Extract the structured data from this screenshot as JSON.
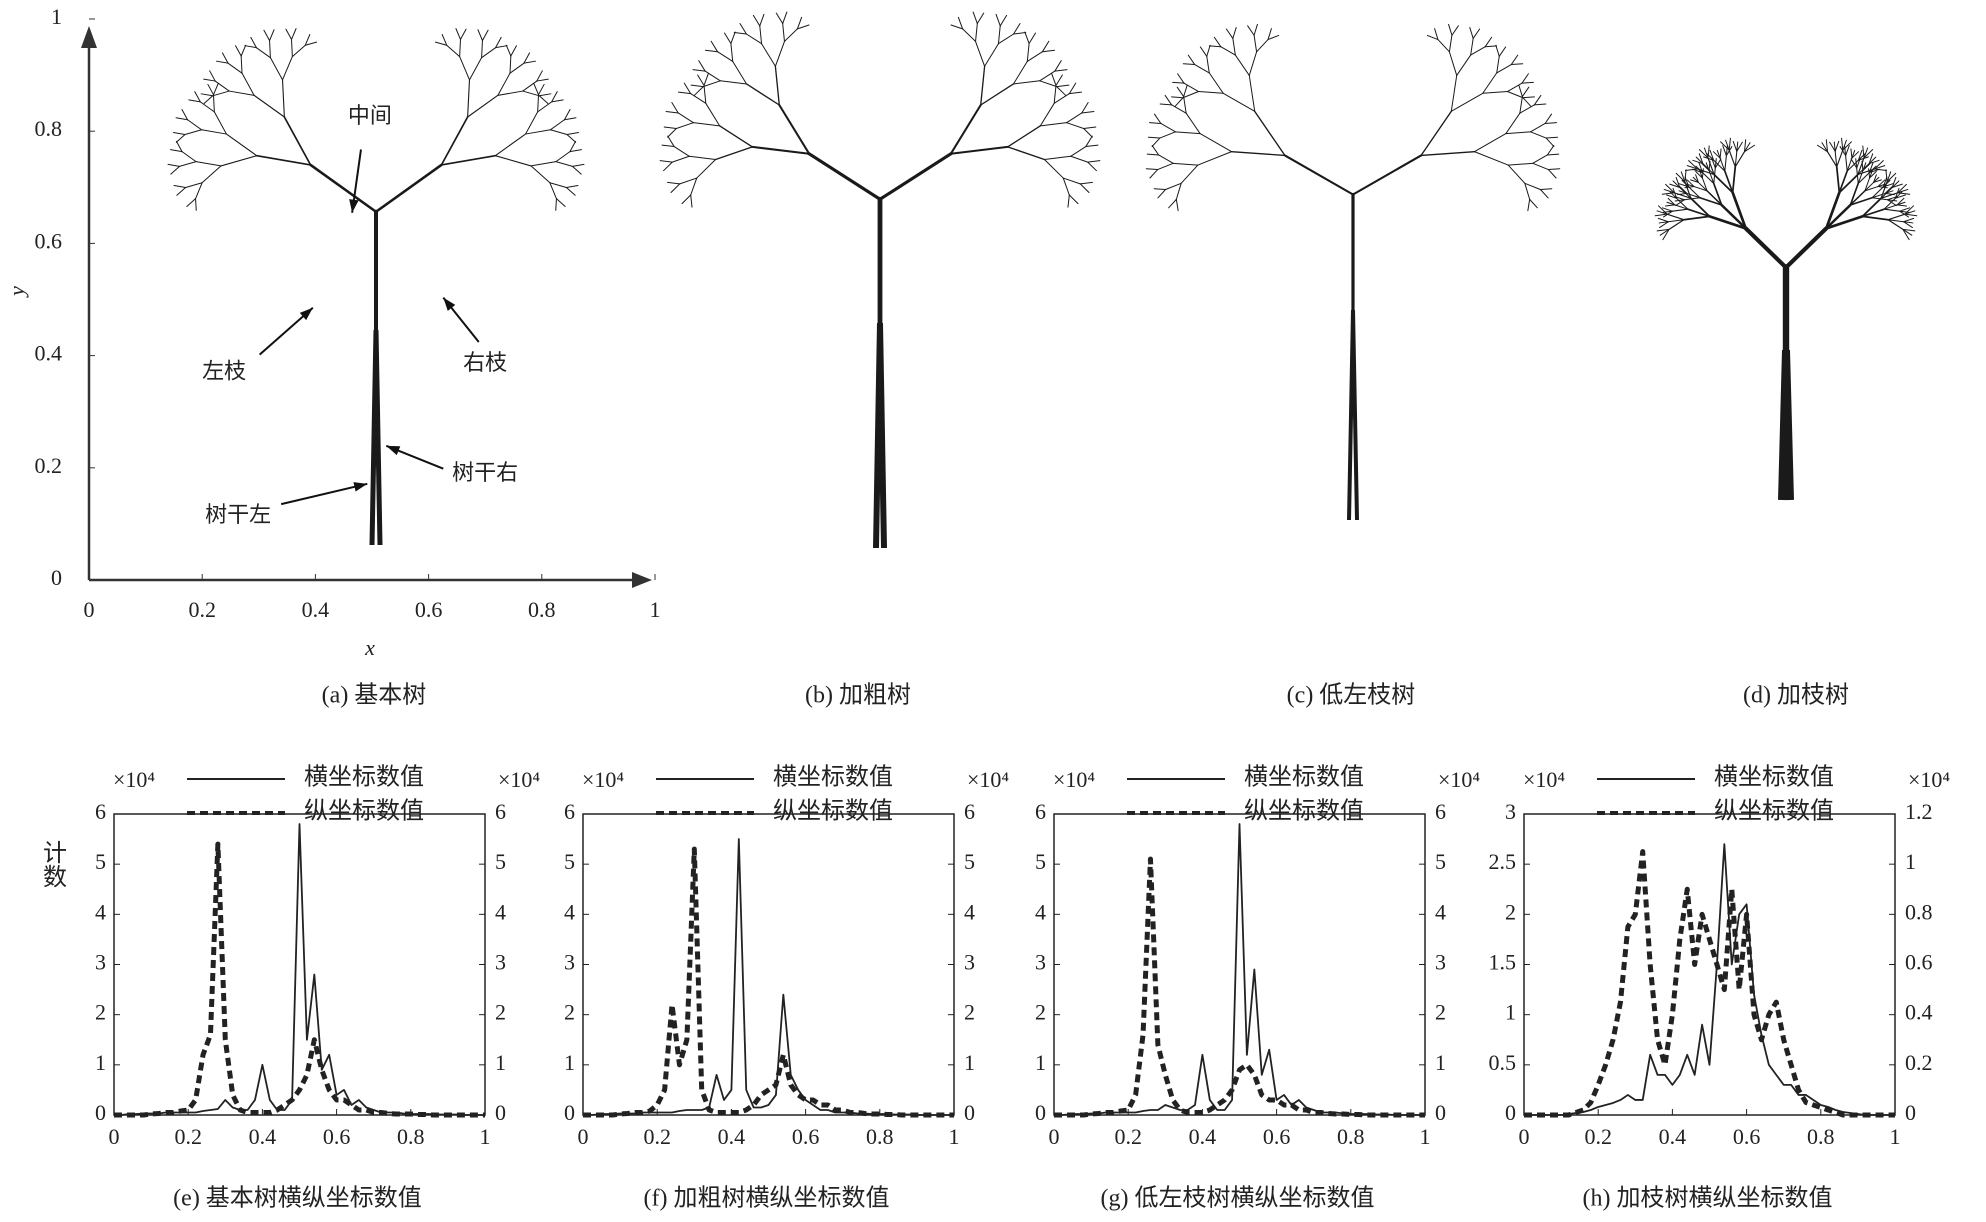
{
  "chart_data": [
    {
      "type": "image",
      "caption": "(a) 基本树",
      "xlim": [
        0,
        1
      ],
      "xticks": [
        0,
        0.2,
        0.4,
        0.6,
        0.8,
        1
      ],
      "ylim": [
        0,
        1
      ],
      "yticks": [
        0,
        0.2,
        0.4,
        0.6,
        0.8,
        1
      ],
      "x_label": "x",
      "y_label": "y",
      "annotations": [
        "中间",
        "左枝",
        "右枝",
        "树干左",
        "树干右"
      ]
    },
    {
      "type": "image",
      "caption": "(b) 加粗树"
    },
    {
      "type": "image",
      "caption": "(c) 低左枝树"
    },
    {
      "type": "image",
      "caption": "(d) 加枝树"
    },
    {
      "type": "line",
      "caption": "(e) 基本树横纵坐标数值",
      "y_label": "计数",
      "y_multiplier": "×10⁴",
      "y2_multiplier": "×10⁴",
      "xlim": [
        0,
        1
      ],
      "xticks": [
        0,
        0.2,
        0.4,
        0.6,
        0.8,
        1
      ],
      "ylim": [
        0,
        6
      ],
      "yticks": [
        0,
        1,
        2,
        3,
        4,
        5,
        6
      ],
      "y2lim": [
        0,
        6
      ],
      "y2ticks": [
        0,
        1,
        2,
        3,
        4,
        5,
        6
      ],
      "x": [
        0,
        0.02,
        0.04,
        0.06,
        0.08,
        0.1,
        0.12,
        0.14,
        0.16,
        0.18,
        0.2,
        0.22,
        0.24,
        0.26,
        0.28,
        0.3,
        0.32,
        0.34,
        0.36,
        0.38,
        0.4,
        0.42,
        0.44,
        0.46,
        0.48,
        0.5,
        0.52,
        0.54,
        0.56,
        0.58,
        0.6,
        0.62,
        0.64,
        0.66,
        0.68,
        0.7,
        0.72,
        0.74,
        0.76,
        0.78,
        0.8,
        0.82,
        0.84,
        0.86,
        0.88,
        0.9,
        0.92,
        0.94,
        0.96,
        0.98,
        1
      ],
      "series": [
        {
          "name": "横坐标数值",
          "color": "#222222",
          "style": "solid",
          "values": [
            0,
            0,
            0.02,
            0.02,
            0.03,
            0.03,
            0.03,
            0.05,
            0.05,
            0.05,
            0.05,
            0.05,
            0.08,
            0.1,
            0.12,
            0.3,
            0.15,
            0.1,
            0.1,
            0.3,
            1.0,
            0.3,
            0.1,
            0.1,
            0.3,
            5.8,
            1.5,
            2.8,
            0.9,
            1.2,
            0.4,
            0.5,
            0.2,
            0.3,
            0.15,
            0.1,
            0.05,
            0.05,
            0.05,
            0.03,
            0.02,
            0.02,
            0.02,
            0.02,
            0.01,
            0.01,
            0.01,
            0,
            0,
            0,
            0
          ]
        },
        {
          "name": "纵坐标数值",
          "color": "#222222",
          "style": "dashed",
          "axis": "y2",
          "values": [
            0,
            0,
            0,
            0,
            0,
            0.02,
            0.03,
            0.05,
            0.05,
            0.08,
            0.1,
            0.3,
            1.2,
            1.6,
            5.4,
            1.5,
            0.4,
            0.1,
            0.05,
            0.05,
            0.05,
            0.05,
            0.1,
            0.2,
            0.3,
            0.5,
            0.8,
            1.5,
            0.9,
            0.5,
            0.3,
            0.3,
            0.2,
            0.1,
            0.1,
            0.05,
            0.05,
            0.03,
            0.02,
            0.02,
            0.02,
            0.01,
            0.01,
            0,
            0,
            0,
            0,
            0,
            0,
            0,
            0
          ]
        }
      ]
    },
    {
      "type": "line",
      "caption": "(f) 加粗树横纵坐标数值",
      "y_multiplier": "×10⁴",
      "y2_multiplier": "×10⁴",
      "xlim": [
        0,
        1
      ],
      "xticks": [
        0,
        0.2,
        0.4,
        0.6,
        0.8,
        1
      ],
      "ylim": [
        0,
        6
      ],
      "yticks": [
        0,
        1,
        2,
        3,
        4,
        5,
        6
      ],
      "y2lim": [
        0,
        6
      ],
      "y2ticks": [
        0,
        1,
        2,
        3,
        4,
        5,
        6
      ],
      "x": [
        0,
        0.02,
        0.04,
        0.06,
        0.08,
        0.1,
        0.12,
        0.14,
        0.16,
        0.18,
        0.2,
        0.22,
        0.24,
        0.26,
        0.28,
        0.3,
        0.32,
        0.34,
        0.36,
        0.38,
        0.4,
        0.42,
        0.44,
        0.46,
        0.48,
        0.5,
        0.52,
        0.54,
        0.56,
        0.58,
        0.6,
        0.62,
        0.64,
        0.66,
        0.68,
        0.7,
        0.72,
        0.74,
        0.76,
        0.78,
        0.8,
        0.82,
        0.84,
        0.86,
        0.88,
        0.9,
        0.92,
        0.94,
        0.96,
        0.98,
        1
      ],
      "series": [
        {
          "name": "横坐标数值",
          "color": "#222222",
          "style": "solid",
          "values": [
            0,
            0,
            0.01,
            0.02,
            0.02,
            0.03,
            0.03,
            0.03,
            0.05,
            0.05,
            0.05,
            0.05,
            0.05,
            0.08,
            0.1,
            0.1,
            0.1,
            0.15,
            0.8,
            0.3,
            0.5,
            5.5,
            0.5,
            0.15,
            0.15,
            0.2,
            0.4,
            2.4,
            0.8,
            0.5,
            0.3,
            0.2,
            0.1,
            0.1,
            0.05,
            0.05,
            0.05,
            0.03,
            0.03,
            0.02,
            0.02,
            0.02,
            0.01,
            0.01,
            0.01,
            0,
            0,
            0,
            0,
            0,
            0
          ]
        },
        {
          "name": "纵坐标数值",
          "color": "#222222",
          "style": "dashed",
          "axis": "y2",
          "values": [
            0,
            0,
            0,
            0,
            0,
            0.02,
            0.03,
            0.05,
            0.05,
            0.08,
            0.2,
            0.5,
            2.2,
            1.0,
            1.5,
            5.3,
            0.5,
            0.1,
            0.05,
            0.05,
            0.05,
            0.05,
            0.1,
            0.2,
            0.4,
            0.5,
            0.6,
            1.2,
            0.6,
            0.4,
            0.3,
            0.3,
            0.2,
            0.2,
            0.1,
            0.1,
            0.05,
            0.05,
            0.03,
            0.02,
            0.02,
            0.01,
            0.01,
            0,
            0,
            0,
            0,
            0,
            0,
            0,
            0
          ]
        }
      ]
    },
    {
      "type": "line",
      "caption": "(g) 低左枝树横纵坐标数值",
      "y_multiplier": "×10⁴",
      "y2_multiplier": "×10⁴",
      "xlim": [
        0,
        1
      ],
      "xticks": [
        0,
        0.2,
        0.4,
        0.6,
        0.8,
        1
      ],
      "ylim": [
        0,
        6
      ],
      "yticks": [
        0,
        1,
        2,
        3,
        4,
        5,
        6
      ],
      "y2lim": [
        0,
        6
      ],
      "y2ticks": [
        0,
        1,
        2,
        3,
        4,
        5,
        6
      ],
      "x": [
        0,
        0.02,
        0.04,
        0.06,
        0.08,
        0.1,
        0.12,
        0.14,
        0.16,
        0.18,
        0.2,
        0.22,
        0.24,
        0.26,
        0.28,
        0.3,
        0.32,
        0.34,
        0.36,
        0.38,
        0.4,
        0.42,
        0.44,
        0.46,
        0.48,
        0.5,
        0.52,
        0.54,
        0.56,
        0.58,
        0.6,
        0.62,
        0.64,
        0.66,
        0.68,
        0.7,
        0.72,
        0.74,
        0.76,
        0.78,
        0.8,
        0.82,
        0.84,
        0.86,
        0.88,
        0.9,
        0.92,
        0.94,
        0.96,
        0.98,
        1
      ],
      "series": [
        {
          "name": "横坐标数值",
          "color": "#222222",
          "style": "solid",
          "values": [
            0,
            0,
            0.01,
            0.02,
            0.02,
            0.03,
            0.03,
            0.05,
            0.05,
            0.05,
            0.05,
            0.05,
            0.08,
            0.1,
            0.1,
            0.2,
            0.15,
            0.1,
            0.1,
            0.2,
            1.2,
            0.3,
            0.1,
            0.1,
            0.3,
            5.8,
            1.2,
            2.9,
            0.8,
            1.3,
            0.3,
            0.4,
            0.2,
            0.3,
            0.15,
            0.1,
            0.05,
            0.05,
            0.05,
            0.03,
            0.02,
            0.02,
            0.02,
            0.01,
            0.01,
            0.01,
            0,
            0,
            0,
            0,
            0
          ]
        },
        {
          "name": "纵坐标数值",
          "color": "#222222",
          "style": "dashed",
          "axis": "y2",
          "values": [
            0,
            0,
            0,
            0,
            0,
            0.02,
            0.03,
            0.05,
            0.05,
            0.08,
            0.1,
            0.4,
            1.6,
            5.1,
            1.4,
            0.8,
            0.3,
            0.1,
            0.05,
            0.05,
            0.05,
            0.1,
            0.2,
            0.3,
            0.5,
            0.9,
            1.0,
            0.8,
            0.4,
            0.3,
            0.3,
            0.2,
            0.2,
            0.1,
            0.1,
            0.05,
            0.05,
            0.03,
            0.02,
            0.02,
            0.01,
            0.01,
            0,
            0,
            0,
            0,
            0,
            0,
            0,
            0,
            0
          ]
        }
      ]
    },
    {
      "type": "line",
      "caption": "(h) 加枝树横纵坐标数值",
      "y_multiplier": "×10⁴",
      "y2_multiplier": "×10⁴",
      "xlim": [
        0,
        1
      ],
      "xticks": [
        0,
        0.2,
        0.4,
        0.6,
        0.8,
        1
      ],
      "ylim": [
        0,
        3
      ],
      "yticks": [
        0,
        0.5,
        1,
        1.5,
        2,
        2.5,
        3
      ],
      "y2lim": [
        0,
        1.2
      ],
      "y2ticks": [
        0,
        0.2,
        0.4,
        0.6,
        0.8,
        1,
        1.2
      ],
      "x": [
        0,
        0.02,
        0.04,
        0.06,
        0.08,
        0.1,
        0.12,
        0.14,
        0.16,
        0.18,
        0.2,
        0.22,
        0.24,
        0.26,
        0.28,
        0.3,
        0.32,
        0.34,
        0.36,
        0.38,
        0.4,
        0.42,
        0.44,
        0.46,
        0.48,
        0.5,
        0.52,
        0.54,
        0.56,
        0.58,
        0.6,
        0.62,
        0.64,
        0.66,
        0.68,
        0.7,
        0.72,
        0.74,
        0.76,
        0.78,
        0.8,
        0.82,
        0.84,
        0.86,
        0.88,
        0.9,
        0.92,
        0.94,
        0.96,
        0.98,
        1
      ],
      "series": [
        {
          "name": "横坐标数值",
          "color": "#222222",
          "style": "solid",
          "values": [
            0,
            0,
            0,
            0,
            0,
            0,
            0.01,
            0.02,
            0.03,
            0.05,
            0.08,
            0.1,
            0.12,
            0.15,
            0.2,
            0.15,
            0.15,
            0.6,
            0.4,
            0.4,
            0.3,
            0.4,
            0.6,
            0.4,
            0.9,
            0.5,
            1.5,
            2.7,
            1.5,
            2.0,
            2.1,
            1.2,
            0.8,
            0.5,
            0.4,
            0.3,
            0.3,
            0.2,
            0.2,
            0.15,
            0.1,
            0.08,
            0.05,
            0.03,
            0.02,
            0.01,
            0,
            0,
            0,
            0,
            0
          ]
        },
        {
          "name": "纵坐标数值",
          "color": "#222222",
          "style": "dashed",
          "axis": "y2",
          "values": [
            0,
            0,
            0,
            0,
            0,
            0,
            0,
            0.01,
            0.02,
            0.05,
            0.12,
            0.2,
            0.3,
            0.45,
            0.75,
            0.8,
            1.05,
            0.6,
            0.3,
            0.2,
            0.4,
            0.7,
            0.9,
            0.6,
            0.8,
            0.7,
            0.6,
            0.5,
            0.9,
            0.5,
            0.8,
            0.4,
            0.3,
            0.4,
            0.45,
            0.3,
            0.2,
            0.1,
            0.05,
            0.04,
            0.03,
            0.02,
            0.01,
            0,
            0,
            0,
            0,
            0,
            0,
            0,
            0
          ]
        }
      ]
    }
  ]
}
